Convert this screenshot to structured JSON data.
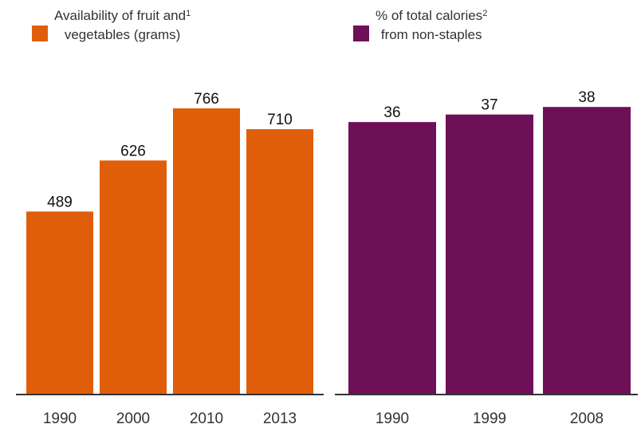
{
  "colors": {
    "orange": "#e05e0a",
    "purple": "#6e1058",
    "axis": "#333333",
    "text": "#111111"
  },
  "legend": [
    {
      "line1": "Availability of fruit and",
      "sup": "1",
      "line2": "vegetables (grams)",
      "color": "#e05e0a"
    },
    {
      "line1": "% of total calories",
      "sup": "2",
      "line2": "from non-staples",
      "color": "#6e1058"
    }
  ],
  "chart_data": [
    {
      "type": "bar",
      "categories": [
        "1990",
        "2000",
        "2010",
        "2013"
      ],
      "values": [
        489,
        626,
        766,
        710
      ],
      "ylim": [
        0,
        800
      ],
      "legend": "Availability of fruit and vegetables (grams)",
      "color": "#e05e0a"
    },
    {
      "type": "bar",
      "categories": [
        "1990",
        "1999",
        "2008"
      ],
      "values": [
        36,
        37,
        38
      ],
      "ylim": [
        0,
        39.5
      ],
      "legend": "% of total calories from non-staples",
      "color": "#6e1058"
    }
  ]
}
